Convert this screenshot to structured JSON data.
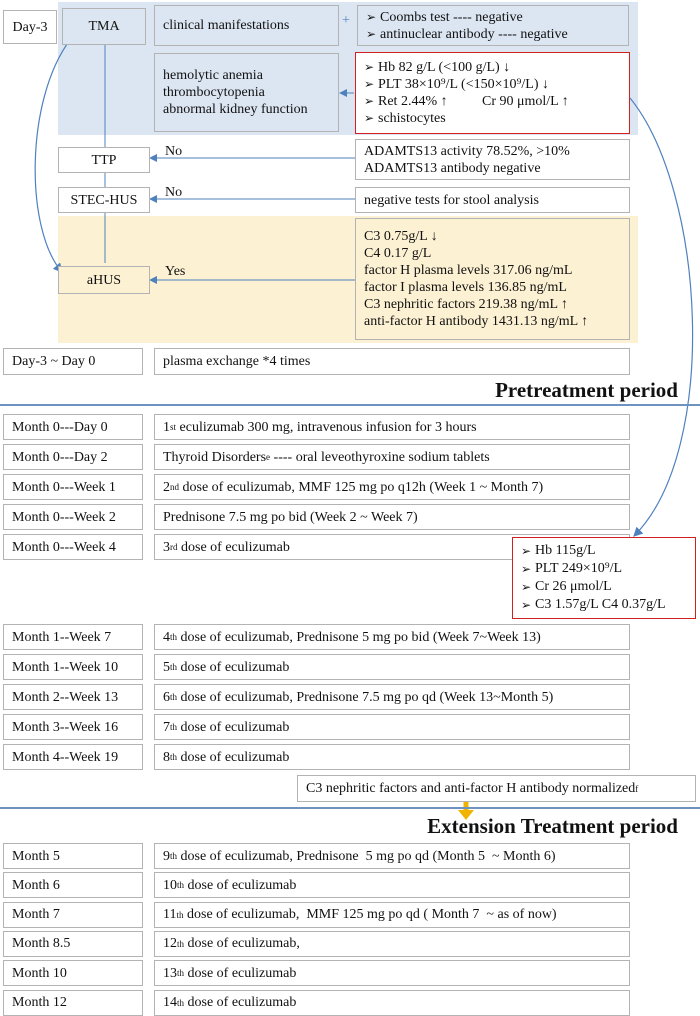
{
  "top": {
    "day_label": "Day-3",
    "tma": "TMA",
    "clinical": "clinical manifestations",
    "plus": "+",
    "coombs": [
      "Coombs test ---- negative",
      "antinuclear antibody ---- negative"
    ],
    "symptoms": [
      "hemolytic anemia",
      "thrombocytopenia",
      "abnormal kidney function"
    ],
    "labs": {
      "hb": "Hb 82 g/L (<100 g/L) ↓",
      "plt": "PLT 38×10⁹/L (<150×10⁹/L) ↓",
      "ret": "Ret 2.44% ↑",
      "cr": "Cr 90 μmol/L ↑",
      "schisto": "schistocytes"
    },
    "ttp": "TTP",
    "ttp_no": "No",
    "adamts": [
      "ADAMTS13 activity 78.52%, >10%",
      "ADAMTS13 antibody  negative"
    ],
    "stec": "STEC-HUS",
    "stec_no": "No",
    "stool": "negative tests for stool analysis",
    "ahus": "aHUS",
    "ahus_yes": "Yes",
    "complement": [
      "C3 0.75g/L ↓",
      "C4 0.17 g/L",
      "factor H plasma levels 317.06 ng/mL",
      "factor I plasma levels 136.85 ng/mL",
      "C3 nephritic factors 219.38 ng/mL ↑",
      "anti-factor H antibody 1431.13  ng/mL ↑"
    ],
    "pe_day": "Day-3  ~  Day 0",
    "pe": "plasma exchange  *4 times"
  },
  "pretreatment_title": "Pretreatment period",
  "pretreatment_rows": [
    {
      "time": "Month 0---Day 0",
      "pre": "1",
      "sup": "st",
      "post": " eculizumab 300 mg, intravenous infusion for 3 hours"
    },
    {
      "time": "Month 0---Day 2",
      "pre": "Thyroid Disorders ",
      "sup": "e",
      "post": " ---- oral leveothyroxine sodium tablets"
    },
    {
      "time": "Month 0---Week 1",
      "pre": "2",
      "sup": "nd",
      "post": " dose of eculizumab, MMF 125 mg po q12h (Week 1 ~ Month 7)"
    },
    {
      "time": "Month 0---Week 2",
      "pre": "Prednisone 7.5 mg po bid (Week 2 ~ Week 7)",
      "sup": "",
      "post": ""
    },
    {
      "time": "Month 0---Week 4",
      "pre": "3",
      "sup": "rd",
      "post": " dose of eculizumab"
    }
  ],
  "followup_labs": [
    "Hb 115g/L",
    "PLT 249×10⁹/L",
    "Cr 26 μmol/L",
    "C3 1.57g/L C4 0.37g/L"
  ],
  "pretreatment_rows2": [
    {
      "time": "Month 1--Week 7",
      "pre": "4",
      "sup": "th",
      "post": " dose of eculizumab, Prednisone 5 mg po bid (Week 7~Week 13)"
    },
    {
      "time": "Month 1--Week 10",
      "pre": "5",
      "sup": "th",
      "post": " dose of eculizumab"
    },
    {
      "time": "Month 2--Week 13",
      "pre": "6",
      "sup": "th",
      "post": " dose of eculizumab, Prednisone 7.5 mg po qd (Week 13~Month 5)"
    },
    {
      "time": "Month 3--Week 16",
      "pre": "7",
      "sup": "th",
      "post": " dose of eculizumab"
    },
    {
      "time": "Month 4--Week 19",
      "pre": "8",
      "sup": "th",
      "post": " dose of eculizumab"
    }
  ],
  "normalized": {
    "text": "C3 nephritic factors and anti-factor H antibody normalized ",
    "sup": "f"
  },
  "extension_title": "Extension Treatment period",
  "extension_rows": [
    {
      "time": "Month 5",
      "pre": "9",
      "sup": "th",
      "post": " dose of eculizumab, Prednisone  5 mg po qd (Month 5  ~ Month 6)"
    },
    {
      "time": "Month 6",
      "pre": "10",
      "sup": "th",
      "post": " dose of eculizumab"
    },
    {
      "time": "Month 7",
      "pre": "11",
      "sup": "th",
      "post": " dose of eculizumab,  MMF 125 mg po qd ( Month 7  ~ as of now)"
    },
    {
      "time": "Month 8.5",
      "pre": "12",
      "sup": "th",
      "post": " dose of eculizumab,"
    },
    {
      "time": "Month 10",
      "pre": "13",
      "sup": "th",
      "post": " dose of eculizumab"
    },
    {
      "time": "Month 12",
      "pre": "14",
      "sup": "th",
      "post": " dose of eculizumab"
    }
  ],
  "colors": {
    "blue_panel": "#dce6f2",
    "yellow_panel": "#fdf1d3",
    "red_border": "#d02020",
    "arrow": "#4f81bd",
    "orange_arrow": "#f0b400"
  }
}
